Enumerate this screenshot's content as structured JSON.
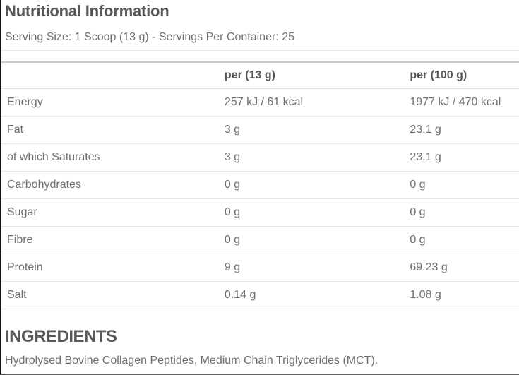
{
  "panel": {
    "title": "Nutritional Information",
    "serving_info": "Serving Size: 1 Scoop (13 g) - Servings Per Container: 25"
  },
  "table": {
    "columns": [
      "",
      "per (13 g)",
      "per (100 g)"
    ],
    "rows": [
      [
        "Energy",
        "257 kJ / 61 kcal",
        "1977 kJ / 470 kcal"
      ],
      [
        "Fat",
        "3 g",
        "23.1 g"
      ],
      [
        "of which Saturates",
        "3 g",
        "23.1 g"
      ],
      [
        "Carbohydrates",
        "0 g",
        "0 g"
      ],
      [
        "Sugar",
        "0 g",
        "0 g"
      ],
      [
        "Fibre",
        "0 g",
        "0 g"
      ],
      [
        "Protein",
        "9 g",
        "69.23 g"
      ],
      [
        "Salt",
        "0.14 g",
        "1.08 g"
      ]
    ]
  },
  "ingredients": {
    "heading": "INGREDIENTS",
    "text": "Hydrolysed Bovine Collagen Peptides, Medium Chain Triglycerides (MCT)."
  },
  "colors": {
    "heading_text": "#58585a",
    "body_text": "#6d6e70",
    "row_border": "#e4e4e4",
    "table_top_border": "#cbcbcb",
    "page_left_border": "#141414",
    "page_bottom_border": "#5a5a5a"
  }
}
